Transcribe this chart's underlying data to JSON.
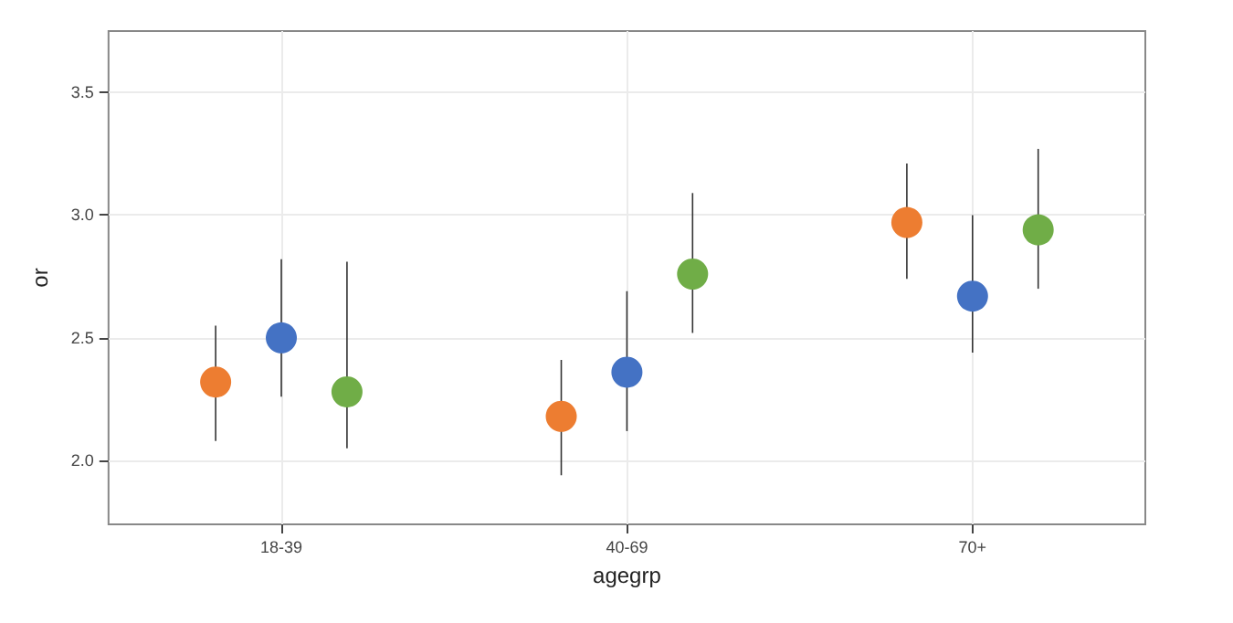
{
  "chart_data": {
    "type": "scatter",
    "xlabel": "agegrp",
    "ylabel": "or",
    "categories": [
      "18-39",
      "40-69",
      "70+"
    ],
    "ylim": [
      1.74,
      3.75
    ],
    "yticks": [
      {
        "value": 2,
        "label": "2.0"
      },
      {
        "value": 2.5,
        "label": "2.5"
      },
      {
        "value": 3,
        "label": "3.0"
      },
      {
        "value": 3.5,
        "label": "3.5"
      }
    ],
    "grid": true,
    "marker": "circle",
    "series": [
      {
        "color": "#ed7d31",
        "values": [
          2.32,
          2.18,
          2.97
        ],
        "errors": [
          [
            2.08,
            2.55
          ],
          [
            1.94,
            2.41
          ],
          [
            2.74,
            3.21
          ]
        ]
      },
      {
        "color": "#4472c4",
        "values": [
          2.5,
          2.36,
          2.67
        ],
        "errors": [
          [
            2.26,
            2.82
          ],
          [
            2.12,
            2.69
          ],
          [
            2.44,
            3.0
          ]
        ]
      },
      {
        "color": "#70ad47",
        "values": [
          2.28,
          2.76,
          2.94
        ],
        "errors": [
          [
            2.05,
            2.81
          ],
          [
            2.52,
            3.09
          ],
          [
            2.7,
            3.27
          ]
        ]
      }
    ]
  }
}
